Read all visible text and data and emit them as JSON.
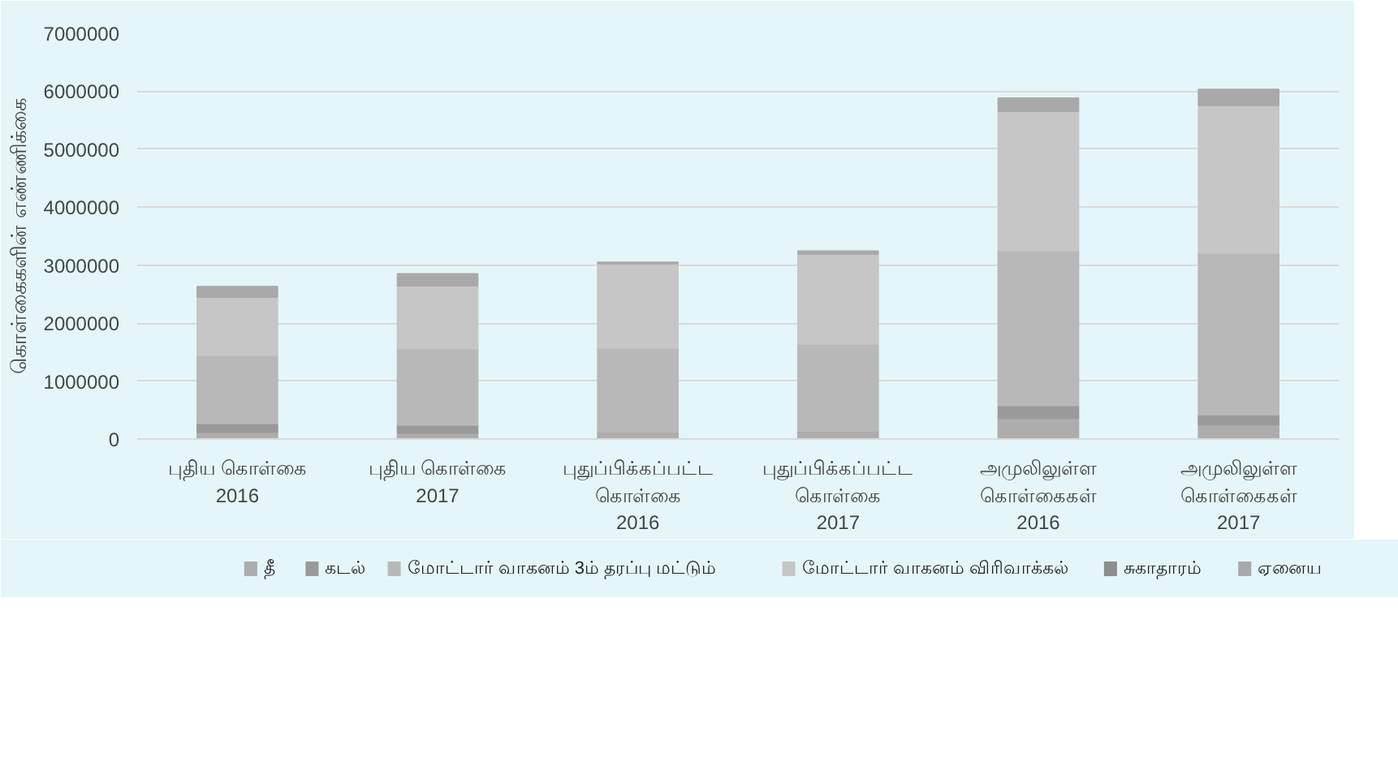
{
  "chart_data": {
    "type": "bar",
    "stacked": true,
    "ylabel": "கொள்கைகளின் எண்ணிக்கை",
    "categories": [
      "புதிய கொள்கை\n2016",
      "புதிய கொள்கை\n2017",
      "புதுப்பிக்கப்பட்ட\nகொள்கை\n2016",
      "புதுப்பிக்கப்பட்ட\nகொள்கை\n2017",
      "அமுலிலுள்ள\nகொள்கைகள்\n2016",
      "அமுலிலுள்ள\nகொள்கைகள்\n2017"
    ],
    "series": [
      {
        "name": "தீ",
        "color": "#adadad",
        "values": [
          120000,
          100000,
          120000,
          140000,
          360000,
          250000
        ]
      },
      {
        "name": "கடல்",
        "color": "#9a9a9a",
        "values": [
          150000,
          140000,
          null,
          null,
          220000,
          170000
        ]
      },
      {
        "name": "மோட்டார் வாகனம் 3ம் தரப்பு மட்டும்",
        "color": "#b8b8b8",
        "values": [
          1180000,
          1320000,
          1450000,
          1500000,
          2670000,
          2790000
        ]
      },
      {
        "name": "மோட்டார் வாகனம் விரிவாக்கல்",
        "color": "#c6c6c6",
        "values": [
          1000000,
          1090000,
          1460000,
          1560000,
          2410000,
          2550000
        ]
      },
      {
        "name": "சுகாதாரம்",
        "color": "#8e8e8e",
        "values": [
          null,
          null,
          null,
          null,
          null,
          null
        ]
      },
      {
        "name": "ஏனைய",
        "color": "#a9a9a9",
        "values": [
          180000,
          200000,
          20000,
          40000,
          220000,
          270000
        ]
      }
    ],
    "ylim": [
      0,
      7000000
    ],
    "yticks": [
      0,
      1000000,
      2000000,
      3000000,
      4000000,
      5000000,
      6000000,
      7000000
    ],
    "grid": "y",
    "legend": "bottom"
  }
}
